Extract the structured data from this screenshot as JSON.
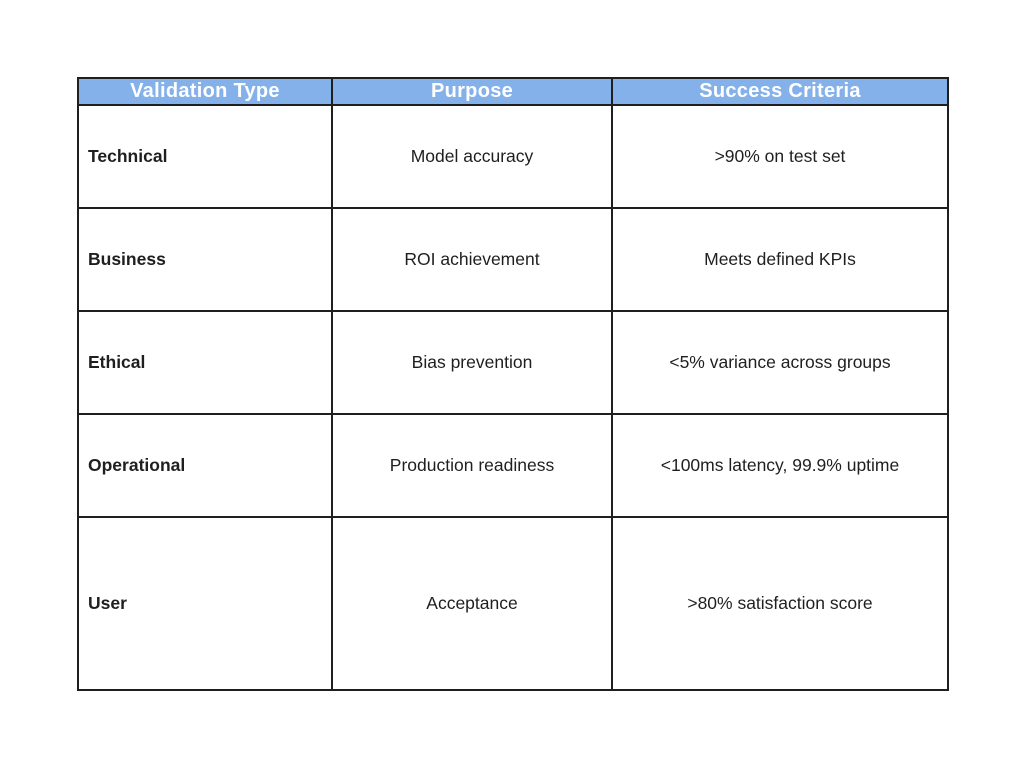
{
  "colors": {
    "background": "#ffffff",
    "header_bg": "#85b1ea",
    "header_text": "#ffffff",
    "border": "#1f1f1f",
    "body_text": "#1f1f1f"
  },
  "chart_data": {
    "type": "table",
    "columns": [
      "Validation Type",
      "Purpose",
      "Success Criteria"
    ],
    "rows": [
      [
        "Technical",
        "Model accuracy",
        ">90% on test set"
      ],
      [
        "Business",
        "ROI achievement",
        "Meets defined KPIs"
      ],
      [
        "Ethical",
        "Bias prevention",
        "<5% variance across groups"
      ],
      [
        "Operational",
        "Production readiness",
        "<100ms latency, 99.9% uptime"
      ],
      [
        "User",
        "Acceptance",
        ">80% satisfaction score"
      ]
    ]
  }
}
